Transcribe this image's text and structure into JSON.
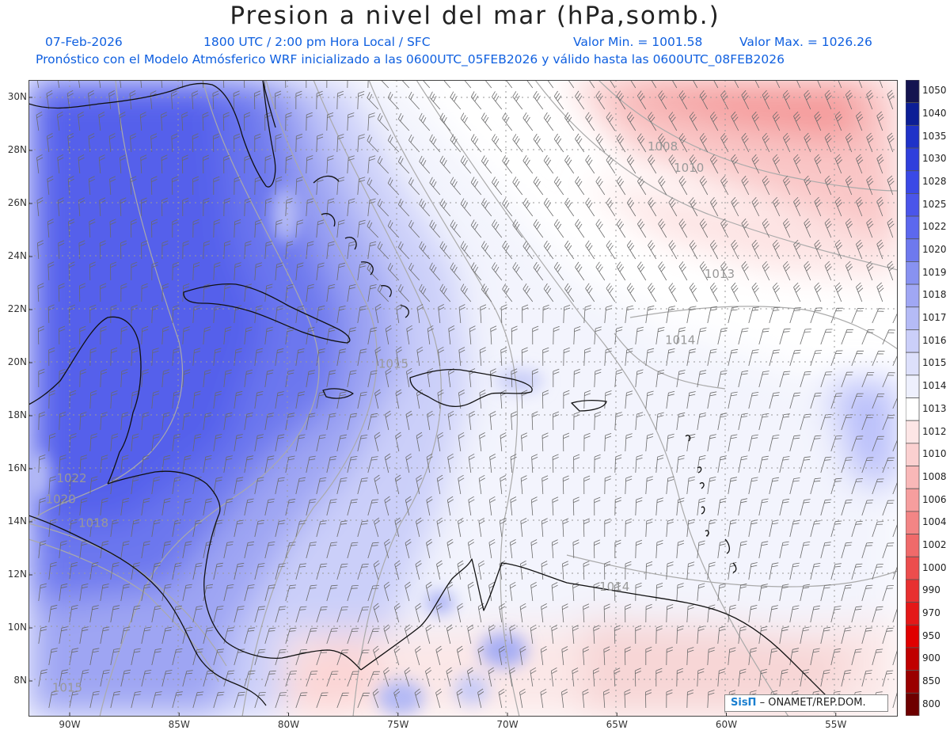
{
  "header": {
    "title": "Presion a nivel del mar (hPa,somb.)",
    "date": "07-Feb-2026",
    "time": "1800 UTC / 2:00 pm Hora Local / SFC",
    "min": "Valor Min. = 1001.58",
    "max": "Valor Max. = 1026.26",
    "model_line": "Pronóstico con el Modelo Atmósferico WRF inicializado a las 0600UTC_05FEB2026 y válido hasta las  0600UTC_08FEB2026"
  },
  "axes": {
    "lon_labels": [
      "90W",
      "85W",
      "80W",
      "75W",
      "70W",
      "65W",
      "60W",
      "55W"
    ],
    "lat_labels": [
      "30N",
      "28N",
      "26N",
      "24N",
      "22N",
      "20N",
      "18N",
      "16N",
      "14N",
      "12N",
      "10N",
      "8N"
    ]
  },
  "contour_labels": [
    {
      "text": "1008",
      "lon": -63.6,
      "lat": 28.0
    },
    {
      "text": "1010",
      "lon": -62.4,
      "lat": 27.2
    },
    {
      "text": "1013",
      "lon": -61.0,
      "lat": 23.2
    },
    {
      "text": "1014",
      "lon": -62.8,
      "lat": 20.7
    },
    {
      "text": "1015",
      "lon": -75.9,
      "lat": 19.8
    },
    {
      "text": "1014",
      "lon": -65.8,
      "lat": 11.4
    },
    {
      "text": "1022",
      "lon": -90.6,
      "lat": 15.5
    },
    {
      "text": "1020",
      "lon": -91.1,
      "lat": 14.7
    },
    {
      "text": "1018",
      "lon": -89.6,
      "lat": 13.8
    },
    {
      "text": "1015",
      "lon": -90.8,
      "lat": 7.6
    }
  ],
  "legend": {
    "levels": [
      "1050",
      "1040",
      "1035",
      "1030",
      "1028",
      "1025",
      "1022",
      "1020",
      "1019",
      "1018",
      "1017",
      "1016",
      "1015",
      "1014",
      "1013",
      "1012",
      "1010",
      "1008",
      "1006",
      "1004",
      "1002",
      "1000",
      "990",
      "970",
      "950",
      "900",
      "850",
      "800"
    ],
    "colors": [
      "#141450",
      "#0c1e96",
      "#1f32c8",
      "#2f3fdc",
      "#3a49e6",
      "#4a55ea",
      "#5c68ee",
      "#6e79ee",
      "#8892f1",
      "#a0a7f4",
      "#b5bbf6",
      "#cbcff9",
      "#dde0fb",
      "#eef0fd",
      "#ffffff",
      "#fde6e6",
      "#fbd0d0",
      "#f9b8b8",
      "#f69e9e",
      "#f38585",
      "#f06a6a",
      "#ec4d4d",
      "#e83030",
      "#e41818",
      "#e00000",
      "#c00000",
      "#9a0000",
      "#6e0000"
    ]
  },
  "credit": {
    "logo": "SisΠ",
    "text": "– ONAMET/REP.DOM."
  }
}
